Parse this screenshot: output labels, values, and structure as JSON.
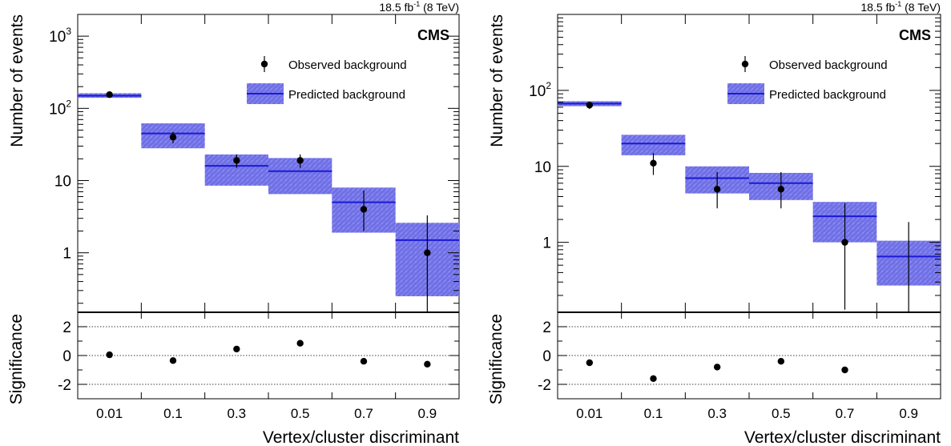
{
  "chart_data": [
    {
      "type": "bar",
      "title": "",
      "lumi_label": "18.5 fb",
      "lumi_exp": "-1",
      "energy_label": "(8 TeV)",
      "experiment": "CMS",
      "xlabel": "Vertex/cluster discriminant",
      "ylabel": "Number of events",
      "sig_ylabel": "Significance",
      "yscale": "log",
      "ylim": [
        0.15,
        2000
      ],
      "yticks": [
        {
          "value": 1000,
          "base": "10",
          "exp": "3"
        },
        {
          "value": 100,
          "base": "10",
          "exp": "2"
        },
        {
          "value": 10,
          "base": "10",
          "exp": ""
        },
        {
          "value": 1,
          "base": "1",
          "exp": ""
        }
      ],
      "categories": [
        "0.01",
        "0.1",
        "0.3",
        "0.5",
        "0.7",
        "0.9"
      ],
      "series": [
        {
          "name": "Observed background",
          "values": [
            155,
            40,
            19,
            19,
            4,
            1
          ],
          "err_low": [
            143,
            33,
            15,
            15,
            2,
            0.15
          ],
          "err_high": [
            167,
            47,
            23,
            23,
            7.3,
            3.3
          ]
        },
        {
          "name": "Predicted background",
          "values": [
            150,
            45,
            16,
            13.5,
            5,
            1.5
          ],
          "band_low": [
            140,
            28,
            8.5,
            6.5,
            1.9,
            0.25
          ],
          "band_high": [
            162,
            62,
            23,
            20.5,
            8,
            2.6
          ]
        }
      ],
      "significance": {
        "values": [
          0.05,
          -0.35,
          0.45,
          0.85,
          -0.4,
          -0.6
        ],
        "ylim": [
          -3,
          3
        ],
        "yticks": [
          "2",
          "0",
          "-2"
        ],
        "dotted_lines": [
          2,
          0,
          -2
        ]
      },
      "legend_position": "top-right"
    },
    {
      "type": "bar",
      "title": "",
      "lumi_label": "18.5 fb",
      "lumi_exp": "-1",
      "energy_label": "(8 TeV)",
      "experiment": "CMS",
      "xlabel": "Vertex/cluster discriminant",
      "ylabel": "Number of events",
      "sig_ylabel": "Significance",
      "yscale": "log",
      "ylim": [
        0.12,
        1000
      ],
      "yticks": [
        {
          "value": 100,
          "base": "10",
          "exp": "2"
        },
        {
          "value": 10,
          "base": "10",
          "exp": ""
        },
        {
          "value": 1,
          "base": "1",
          "exp": ""
        }
      ],
      "categories": [
        "0.01",
        "0.1",
        "0.3",
        "0.5",
        "0.7",
        "0.9"
      ],
      "series": [
        {
          "name": "Observed background",
          "values": [
            64,
            11,
            5,
            5,
            1,
            0
          ],
          "err_low": [
            57,
            7.7,
            2.8,
            2.8,
            0.13,
            0.12
          ],
          "err_high": [
            71,
            15,
            8.4,
            8.4,
            3.3,
            1.85
          ]
        },
        {
          "name": "Predicted background",
          "values": [
            67,
            20,
            7,
            6,
            2.2,
            0.65
          ],
          "band_low": [
            62,
            14,
            4.4,
            3.6,
            1.0,
            0.27
          ],
          "band_high": [
            72,
            26,
            10,
            8.2,
            3.4,
            1.05
          ]
        }
      ],
      "significance": {
        "values": [
          -0.5,
          -1.6,
          -0.8,
          -0.4,
          -1.0
        ],
        "ylim": [
          -3,
          3
        ],
        "yticks": [
          "2",
          "0",
          "-2"
        ],
        "dotted_lines": [
          2,
          0,
          -2
        ]
      },
      "legend_position": "top-right"
    }
  ]
}
